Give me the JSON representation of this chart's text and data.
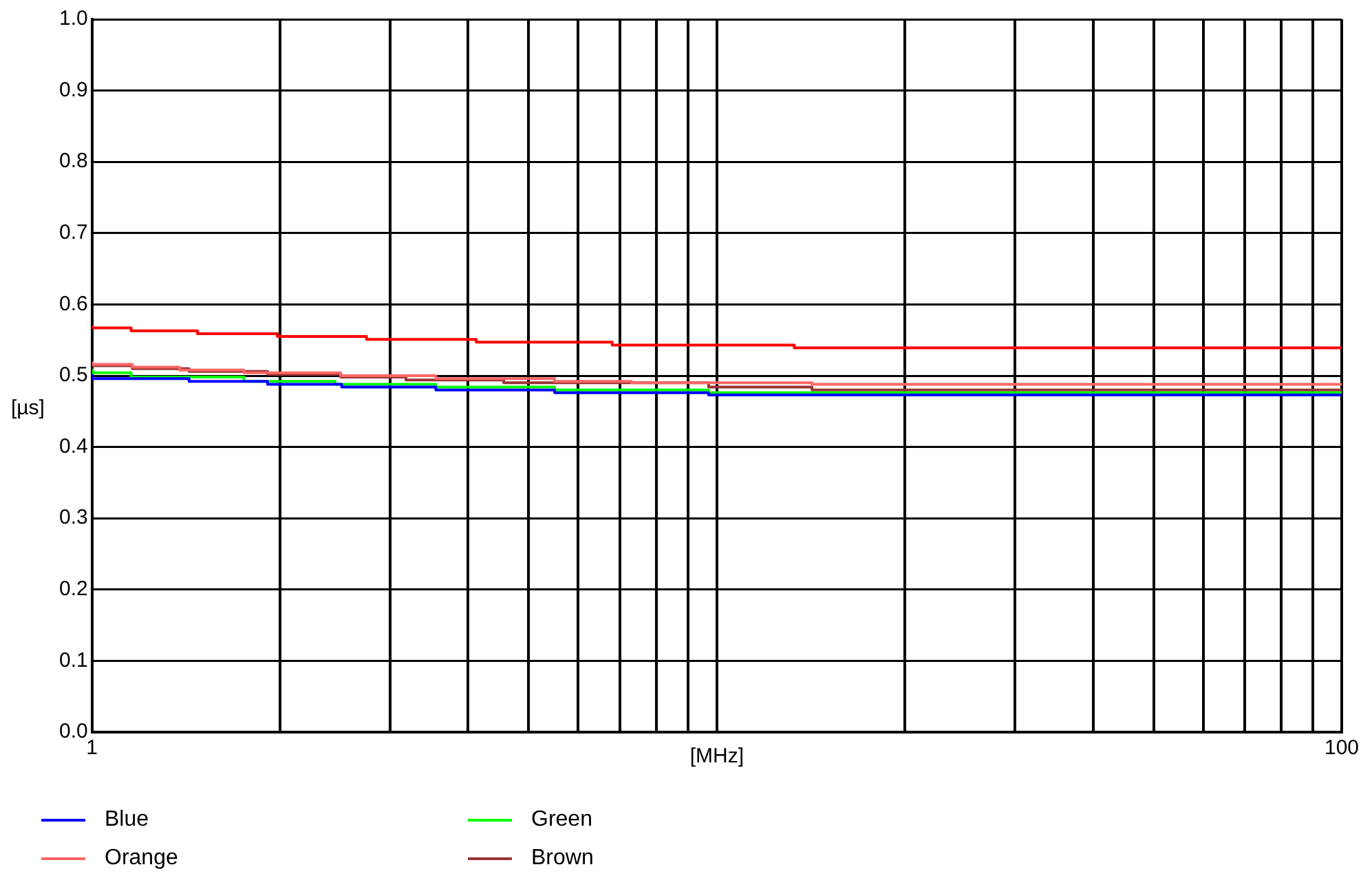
{
  "chart_data": {
    "type": "step",
    "xlabel": "[MHz]",
    "ylabel": "[µs]",
    "log": "x",
    "grid": true,
    "legend": "bottom left",
    "xlim": [
      1,
      100
    ],
    "ylim": [
      0,
      1
    ],
    "xticks": [
      1,
      {
        "value": 2,
        "label": null
      },
      {
        "value": 3,
        "label": null
      },
      {
        "value": 4,
        "label": null
      },
      {
        "value": 5,
        "label": null
      },
      {
        "value": 6,
        "label": null
      },
      {
        "value": 7,
        "label": null
      },
      {
        "value": 8,
        "label": null
      },
      {
        "value": 9,
        "label": null
      },
      {
        "value": 10,
        "label": null
      },
      {
        "value": 20,
        "label": null
      },
      {
        "value": 30,
        "label": null
      },
      {
        "value": 40,
        "label": null
      },
      {
        "value": 50,
        "label": null
      },
      {
        "value": 60,
        "label": null
      },
      {
        "value": 70,
        "label": null
      },
      {
        "value": 80,
        "label": null
      },
      {
        "value": 90,
        "label": null
      },
      100
    ],
    "yticks": [
      {
        "value": 0,
        "label": "0.0"
      },
      0.1,
      0.2,
      0.3,
      0.4,
      0.5,
      0.6,
      0.7,
      0.8,
      0.9,
      {
        "value": 1,
        "label": "1.0"
      }
    ],
    "series": [
      {
        "name": "Blue",
        "color": "#0000ff",
        "x": [
          1,
          1.43,
          1.91,
          2.51,
          3.55,
          5.5,
          9.7,
          22.9,
          100
        ],
        "values": [
          0.502,
          0.496,
          0.492,
          0.488,
          0.484,
          0.48,
          0.476,
          0.473,
          0.473
        ]
      },
      {
        "name": "Orange",
        "color": "#ff6666",
        "x": [
          1,
          1.16,
          1.38,
          1.75,
          2.5,
          3.55,
          5.5,
          7.3,
          14.2,
          36,
          100
        ],
        "values": [
          0.52,
          0.516,
          0.512,
          0.508,
          0.504,
          0.5,
          0.496,
          0.492,
          0.49,
          0.488,
          0.488
        ]
      },
      {
        "name": "Green",
        "color": "#00ff00",
        "x": [
          1,
          1.155,
          1.75,
          2.45,
          3.55,
          5.5,
          9.7,
          22.9,
          100
        ],
        "values": [
          0.51,
          0.504,
          0.498,
          0.492,
          0.488,
          0.484,
          0.48,
          0.476,
          0.476
        ]
      },
      {
        "name": "Brown",
        "color": "#993333",
        "x": [
          1,
          1.16,
          1.43,
          1.91,
          2.5,
          3.18,
          4.56,
          9.7,
          14.2,
          36,
          100
        ],
        "values": [
          0.518,
          0.514,
          0.51,
          0.506,
          0.502,
          0.498,
          0.494,
          0.49,
          0.484,
          0.48,
          0.48
        ]
      },
      {
        "color": "#ff0000",
        "x": [
          1,
          1.155,
          1.475,
          1.98,
          2.75,
          4.12,
          6.8,
          13.3,
          36.3,
          100
        ],
        "values": [
          0.571,
          0.567,
          0.563,
          0.559,
          0.555,
          0.551,
          0.547,
          0.543,
          0.539,
          0.539
        ]
      }
    ]
  }
}
